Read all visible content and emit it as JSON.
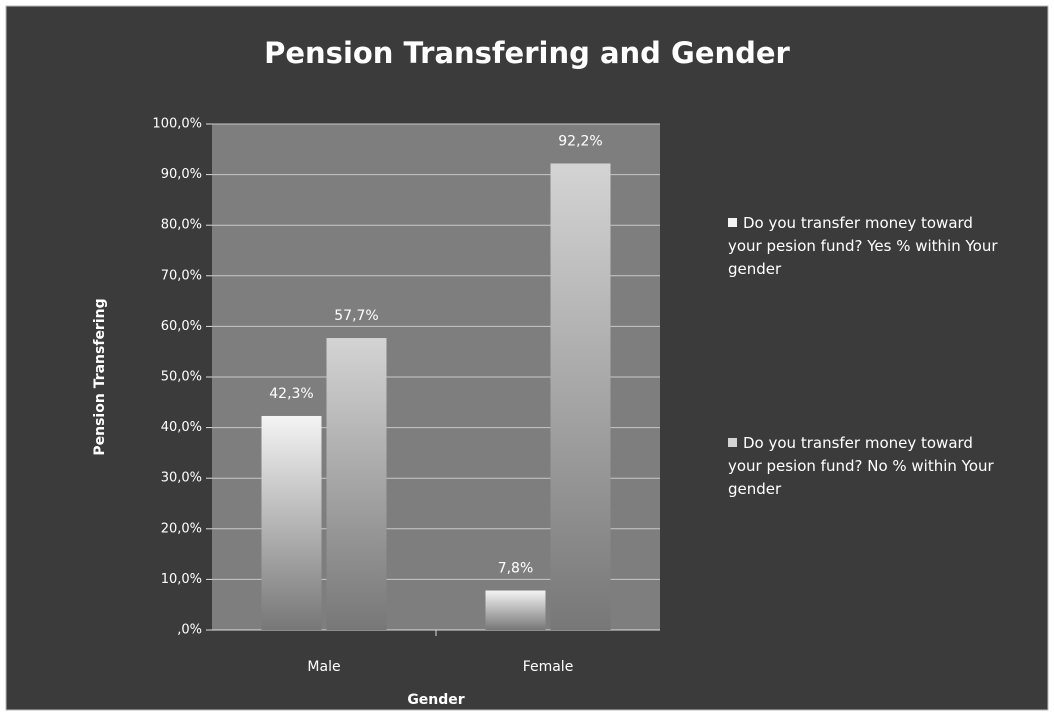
{
  "chart_data": {
    "type": "bar",
    "title": "Pension Transfering and Gender",
    "x_label": "Gender",
    "y_label": "Pension Transfering",
    "categories": [
      "Male",
      "Female"
    ],
    "series": [
      {
        "name": "Do you transfer money toward your pesion fund? Yes % within Your gender",
        "color": "#f4f4f4",
        "values": [
          42.3,
          7.8
        ],
        "value_labels": [
          "42,3%",
          "7,8%"
        ]
      },
      {
        "name": "Do you transfer money toward your pesion fund? No % within Your gender",
        "color": "#d4d4d4",
        "values": [
          57.7,
          92.2
        ],
        "value_labels": [
          "57,7%",
          "92,2%"
        ]
      }
    ],
    "ylim": [
      0,
      100
    ],
    "yticks": [
      {
        "value": 0,
        "label": ",0%"
      },
      {
        "value": 10,
        "label": "10,0%"
      },
      {
        "value": 20,
        "label": "20,0%"
      },
      {
        "value": 30,
        "label": "30,0%"
      },
      {
        "value": 40,
        "label": "40,0%"
      },
      {
        "value": 50,
        "label": "50,0%"
      },
      {
        "value": 60,
        "label": "60,0%"
      },
      {
        "value": 70,
        "label": "70,0%"
      },
      {
        "value": 80,
        "label": "80,0%"
      },
      {
        "value": 90,
        "label": "90,0%"
      },
      {
        "value": 100,
        "label": "100,0%"
      }
    ],
    "grid": true,
    "legend": "right"
  }
}
